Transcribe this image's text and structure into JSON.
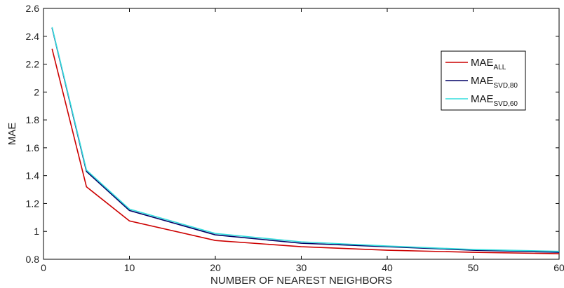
{
  "chart_data": {
    "type": "line",
    "xlabel": "NUMBER OF NEAREST NEIGHBORS",
    "ylabel": "MAE",
    "xlim": [
      0,
      60
    ],
    "ylim": [
      0.8,
      2.6
    ],
    "xticks": [
      0,
      10,
      20,
      30,
      40,
      50,
      60
    ],
    "yticks": [
      0.8,
      1,
      1.2,
      1.4,
      1.6,
      1.8,
      2,
      2.2,
      2.4,
      2.6
    ],
    "xtick_labels": [
      "0",
      "10",
      "20",
      "30",
      "40",
      "50",
      "60"
    ],
    "ytick_labels": [
      "0.8",
      "1",
      "1.2",
      "1.4",
      "1.6",
      "1.8",
      "2",
      "2.2",
      "2.4",
      "2.6"
    ],
    "grid": false,
    "legend_position": "right",
    "x": [
      1,
      5,
      10,
      20,
      30,
      40,
      50,
      60
    ],
    "series": [
      {
        "name": "MAE",
        "name_sub": "ALL",
        "color": "#cc0000",
        "values": [
          2.31,
          1.32,
          1.075,
          0.935,
          0.89,
          0.865,
          0.85,
          0.84
        ]
      },
      {
        "name": "MAE",
        "name_sub": "SVD,80",
        "color": "#000066",
        "values": [
          2.46,
          1.43,
          1.15,
          0.975,
          0.915,
          0.89,
          0.865,
          0.85
        ]
      },
      {
        "name": "MAE",
        "name_sub": "SVD,60",
        "color": "#33dddd",
        "values": [
          2.465,
          1.44,
          1.16,
          0.985,
          0.925,
          0.895,
          0.87,
          0.857
        ]
      }
    ]
  }
}
